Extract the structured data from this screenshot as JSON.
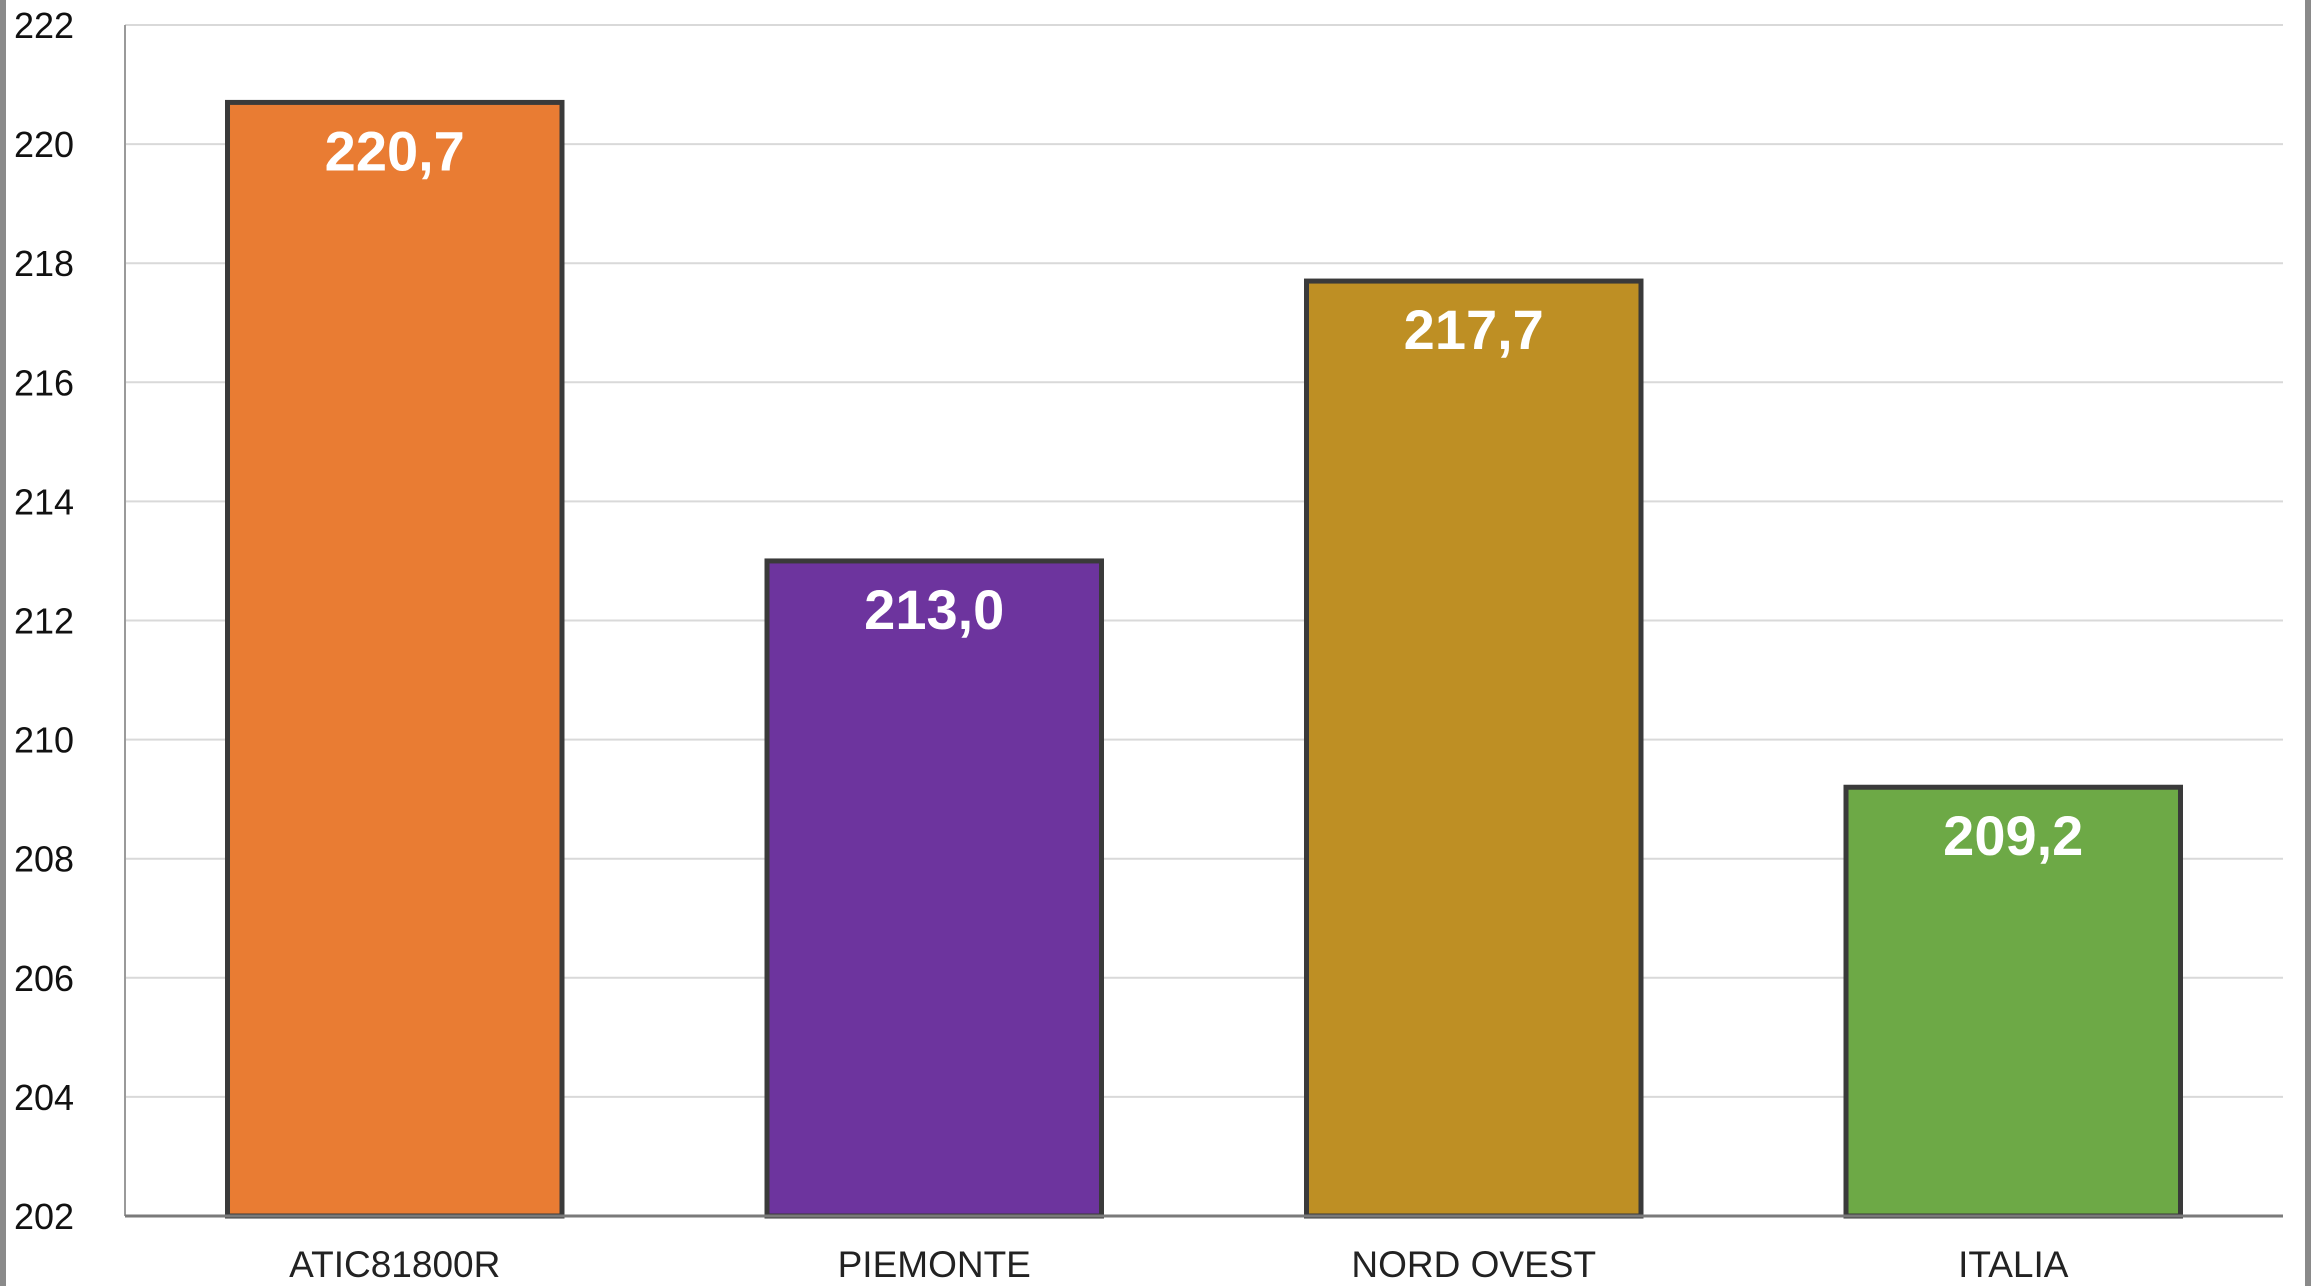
{
  "chart_data": {
    "type": "bar",
    "categories": [
      "ATIC81800R",
      "PIEMONTE",
      "NORD OVEST",
      "ITALIA"
    ],
    "values": [
      220.7,
      213.0,
      217.7,
      209.2
    ],
    "value_labels": [
      "220,7",
      "213,0",
      "217,7",
      "209,2"
    ],
    "colors": [
      "#E97C33",
      "#6D349E",
      "#BE8F24",
      "#6DA946"
    ],
    "title": "",
    "xlabel": "",
    "ylabel": "",
    "ylim": [
      202,
      222
    ],
    "yticks": [
      202,
      204,
      206,
      208,
      210,
      212,
      214,
      216,
      218,
      220,
      222
    ],
    "grid": true,
    "legend": "none"
  }
}
